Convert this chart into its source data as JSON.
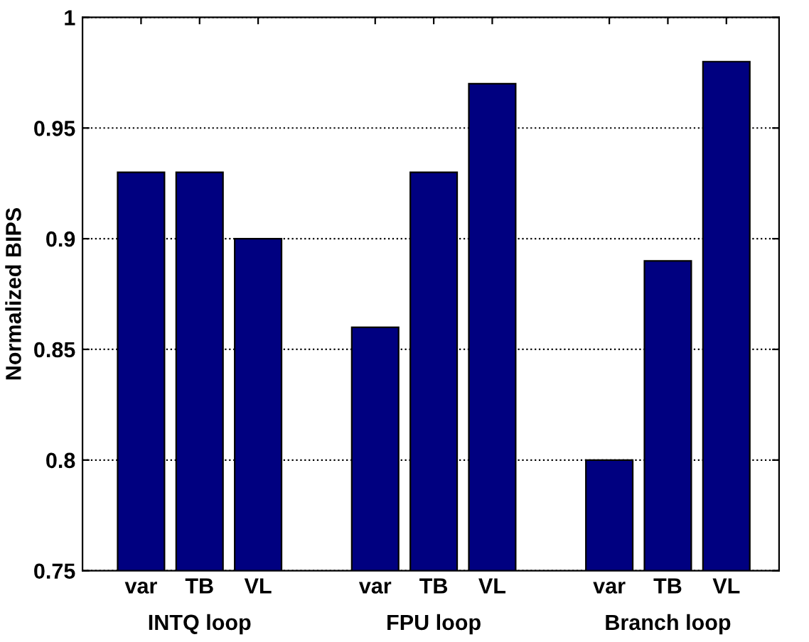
{
  "chart_data": {
    "type": "bar",
    "ylabel": "Normalized BIPS",
    "categories": [
      "var",
      "TB",
      "VL",
      null,
      "var",
      "TB",
      "VL",
      null,
      "var",
      "TB",
      "VL"
    ],
    "values": [
      0.93,
      0.93,
      0.9,
      null,
      0.86,
      0.93,
      0.97,
      null,
      0.8,
      0.89,
      0.98
    ],
    "color": "#000080",
    "ylim": [
      0.75,
      1
    ],
    "yticks": [
      0.75,
      0.8,
      0.85,
      0.9,
      0.95,
      1
    ],
    "grid": "y",
    "legend": false,
    "annotations": [
      "INTQ loop",
      "FPU loop",
      "Branch loop"
    ]
  }
}
